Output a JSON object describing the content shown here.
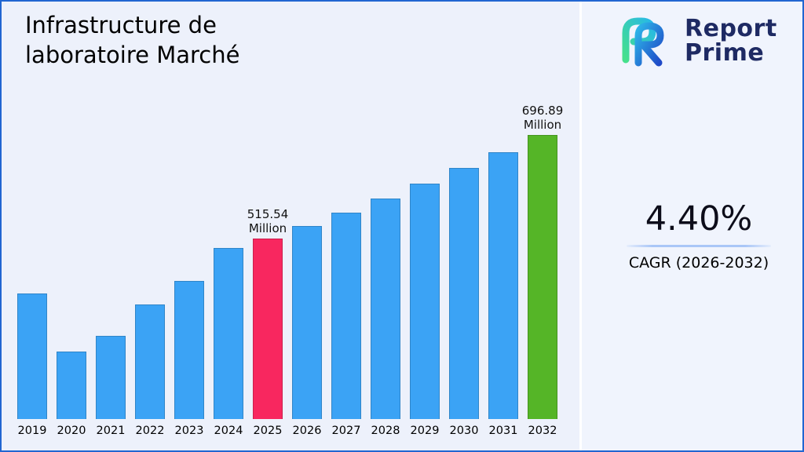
{
  "title": "Infrastructure de\nlaboratoire Marché",
  "logo": {
    "line1": "Report",
    "line2": "Prime"
  },
  "cagr": {
    "value": "4.40%",
    "label": "CAGR (2026-2032)"
  },
  "chart_data": {
    "type": "bar",
    "title": "Infrastructure de laboratoire Marché",
    "unit": "Million",
    "categories": [
      "2019",
      "2020",
      "2021",
      "2022",
      "2023",
      "2024",
      "2025",
      "2026",
      "2027",
      "2028",
      "2029",
      "2030",
      "2031",
      "2032"
    ],
    "values": [
      420,
      318,
      346,
      400,
      442,
      500,
      515.54,
      538.22,
      561.9,
      586.62,
      612.43,
      639.38,
      667.51,
      696.89
    ],
    "annotations": [
      {
        "category": "2025",
        "label": "515.54\nMillion"
      },
      {
        "category": "2032",
        "label": "696.89\nMillion"
      }
    ],
    "colors": {
      "default": "#3ba3f5",
      "2025": "#f8275f",
      "2032": "#55b527"
    },
    "ylim": [
      200,
      700
    ],
    "xlabel": "",
    "ylabel": "",
    "grid": false,
    "legend": false
  },
  "style": {
    "border_color": "#2166d1",
    "background_left": "#edf1fb",
    "background_right": "#f0f4fd",
    "underline_color": "#a9c6f7",
    "logo_text_color": "#1e2a63"
  }
}
